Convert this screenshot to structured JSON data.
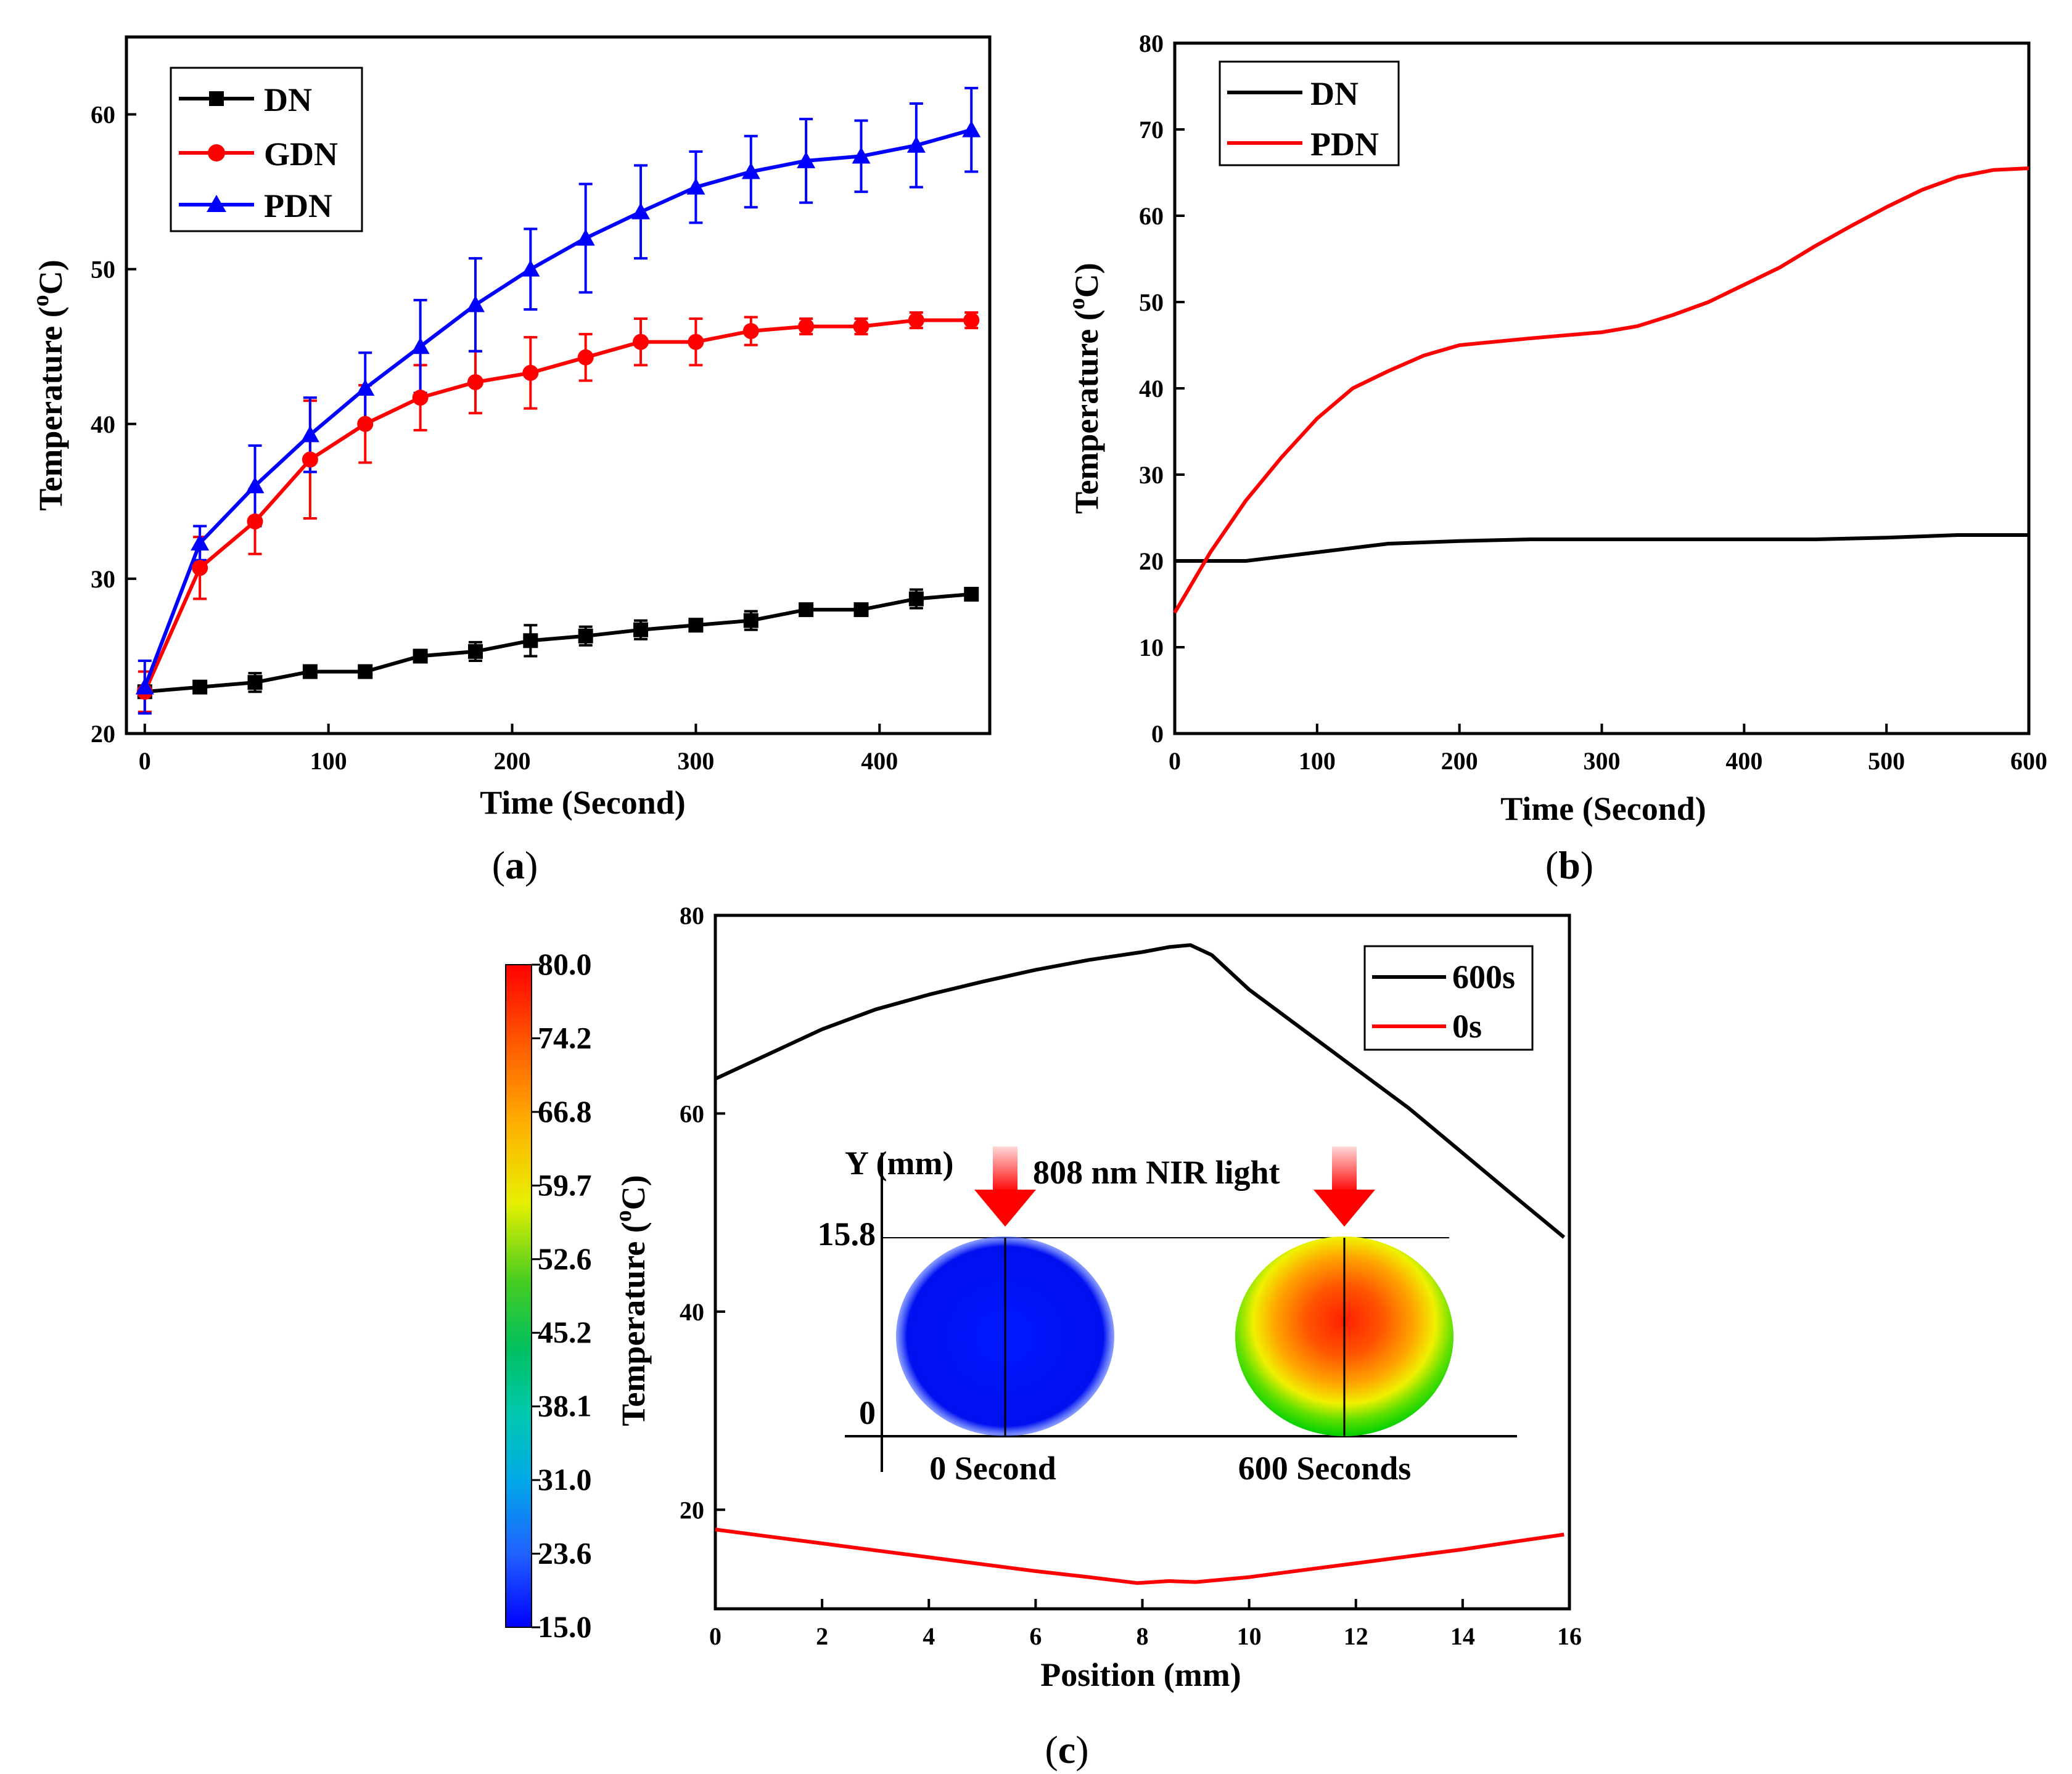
{
  "colors": {
    "black": "#000000",
    "red": "#ff0000",
    "blue": "#0000ff"
  },
  "chart_data": [
    {
      "panel": "(a)",
      "panel_letter": "a",
      "type": "line",
      "xlabel": "Time (Second)",
      "ylabel_main": "Temperature (",
      "ylabel_sup": "o",
      "ylabel_end": "C)",
      "xlim": [
        -10,
        460
      ],
      "ylim": [
        20,
        65
      ],
      "xticks": [
        0,
        100,
        200,
        300,
        400
      ],
      "yticks": [
        20,
        30,
        40,
        50,
        60
      ],
      "legend_position": "top-left",
      "x": [
        0,
        30,
        60,
        90,
        120,
        150,
        180,
        210,
        240,
        270,
        300,
        330,
        360,
        390,
        420,
        450
      ],
      "series": [
        {
          "name": "DN",
          "color": "#000000",
          "marker": "square",
          "values": [
            22.7,
            23.0,
            23.3,
            24.0,
            24.0,
            25.0,
            25.3,
            26.0,
            26.3,
            26.7,
            27.0,
            27.3,
            28.0,
            28.0,
            28.7,
            29.0
          ],
          "errors": [
            0.2,
            0.2,
            0.6,
            0.2,
            0.2,
            0.2,
            0.6,
            1.0,
            0.6,
            0.6,
            0.2,
            0.6,
            0.2,
            0.2,
            0.6,
            0.2
          ]
        },
        {
          "name": "GDN",
          "color": "#ff0000",
          "marker": "circle",
          "values": [
            22.7,
            30.7,
            33.7,
            37.7,
            40.0,
            41.7,
            42.7,
            43.3,
            44.3,
            45.3,
            45.3,
            46.0,
            46.3,
            46.3,
            46.7,
            46.7
          ],
          "errors": [
            1.3,
            2.0,
            2.1,
            3.8,
            2.5,
            2.1,
            2.0,
            2.3,
            1.5,
            1.5,
            1.5,
            0.9,
            0.5,
            0.5,
            0.5,
            0.5
          ]
        },
        {
          "name": "PDN",
          "color": "#0000ff",
          "marker": "triangle",
          "values": [
            23.0,
            32.3,
            36.0,
            39.3,
            42.3,
            45.0,
            47.7,
            50.0,
            52.0,
            53.7,
            55.3,
            56.3,
            57.0,
            57.3,
            58.0,
            59.0
          ],
          "errors": [
            1.7,
            1.1,
            2.6,
            2.4,
            2.3,
            3.0,
            3.0,
            2.6,
            3.5,
            3.0,
            2.3,
            2.3,
            2.7,
            2.3,
            2.7,
            2.7
          ]
        }
      ]
    },
    {
      "panel": "(b)",
      "panel_letter": "b",
      "type": "line",
      "xlabel": "Time (Second)",
      "ylabel_main": "Temperature (",
      "ylabel_sup": "o",
      "ylabel_end": "C)",
      "xlim": [
        0,
        600
      ],
      "ylim": [
        0,
        80
      ],
      "xticks": [
        0,
        100,
        200,
        300,
        400,
        500,
        600
      ],
      "yticks": [
        0,
        10,
        20,
        30,
        40,
        50,
        60,
        70,
        80
      ],
      "legend_position": "top-left",
      "series": [
        {
          "name": "DN",
          "color": "#000000",
          "x": [
            0,
            50,
            100,
            150,
            200,
            250,
            300,
            350,
            400,
            450,
            500,
            550,
            600
          ],
          "values": [
            20.0,
            20.0,
            21.0,
            22.0,
            22.3,
            22.5,
            22.5,
            22.5,
            22.5,
            22.5,
            22.7,
            23.0,
            23.0
          ]
        },
        {
          "name": "PDN",
          "color": "#ff0000",
          "x": [
            0,
            25,
            50,
            75,
            100,
            125,
            150,
            175,
            200,
            250,
            300,
            325,
            350,
            375,
            400,
            425,
            450,
            475,
            500,
            525,
            550,
            575,
            600
          ],
          "values": [
            14.0,
            21.0,
            27.0,
            32.0,
            36.5,
            40.0,
            42.0,
            43.8,
            45.0,
            45.8,
            46.5,
            47.2,
            48.5,
            50.0,
            52.0,
            54.0,
            56.5,
            58.8,
            61.0,
            63.0,
            64.5,
            65.3,
            65.5
          ]
        }
      ]
    },
    {
      "panel": "(c)",
      "panel_letter": "c",
      "type": "line",
      "xlabel": "Position (mm)",
      "ylabel_main": "Temperature (",
      "ylabel_sup": "o",
      "ylabel_end": "C)",
      "xlim": [
        0,
        16
      ],
      "ylim": [
        10,
        80
      ],
      "xticks": [
        0,
        2,
        4,
        6,
        8,
        10,
        12,
        14,
        16
      ],
      "yticks": [
        20,
        40,
        60,
        80
      ],
      "legend_position": "top-right",
      "series": [
        {
          "name": "600s",
          "color": "#000000",
          "x": [
            0,
            1,
            2,
            3,
            4,
            5,
            6,
            7,
            8,
            8.5,
            8.9,
            9.3,
            10,
            11,
            12,
            13,
            14,
            15,
            15.9
          ],
          "values": [
            63.5,
            66.0,
            68.5,
            70.5,
            72.0,
            73.3,
            74.5,
            75.5,
            76.3,
            76.8,
            77.0,
            76.0,
            72.5,
            68.5,
            64.5,
            60.5,
            56.0,
            51.5,
            47.5
          ]
        },
        {
          "name": "0s",
          "color": "#ff0000",
          "x": [
            0,
            1,
            2,
            3,
            4,
            5,
            6,
            7,
            7.9,
            8.5,
            9,
            10,
            11,
            12,
            13,
            14,
            15,
            15.9
          ],
          "values": [
            18.0,
            17.3,
            16.6,
            15.9,
            15.2,
            14.5,
            13.8,
            13.2,
            12.6,
            12.8,
            12.7,
            13.2,
            13.9,
            14.6,
            15.3,
            16.0,
            16.8,
            17.5
          ]
        }
      ],
      "inset": {
        "title": "808 nm NIR light",
        "y_axis_label": "Y (mm)",
        "y_ticks": [
          "15.8",
          "0"
        ],
        "labels": [
          "0 Second",
          "600 Seconds"
        ]
      },
      "colorbar": {
        "ticks": [
          "80.0",
          "74.2",
          "66.8",
          "59.7",
          "52.6",
          "45.2",
          "38.1",
          "31.0",
          "23.6",
          "15.0"
        ]
      }
    }
  ]
}
